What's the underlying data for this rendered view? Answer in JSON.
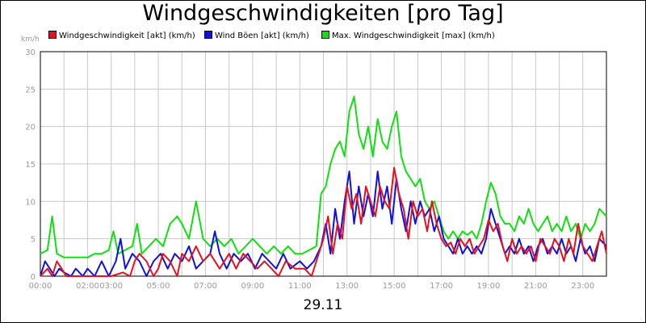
{
  "chart_data": {
    "type": "line",
    "title": "Windgeschwindigkeiten [pro Tag]",
    "date_label": "29.11",
    "unit_label": "km/h",
    "ylim": [
      0,
      30
    ],
    "yticks": [
      "0",
      "5",
      "10",
      "15",
      "20",
      "25",
      "30"
    ],
    "xlim": [
      0,
      24
    ],
    "xticks": [
      {
        "t": 0,
        "label": "00:00"
      },
      {
        "t": 2,
        "label": "02:00"
      },
      {
        "t": 3,
        "label": "03:00"
      },
      {
        "t": 5,
        "label": "05:00"
      },
      {
        "t": 7,
        "label": "07:00"
      },
      {
        "t": 9,
        "label": "09:00"
      },
      {
        "t": 11,
        "label": "11:00"
      },
      {
        "t": 13,
        "label": "13:00"
      },
      {
        "t": 15,
        "label": "15:00"
      },
      {
        "t": 17,
        "label": "17:00"
      },
      {
        "t": 19,
        "label": "19:00"
      },
      {
        "t": 21,
        "label": "21:00"
      },
      {
        "t": 23,
        "label": "23:00"
      }
    ],
    "grid": true,
    "legend_position": "top",
    "series": [
      {
        "name": "Windgeschwindigkeit [akt] (km/h)",
        "color": "#e8101e",
        "points": [
          [
            0,
            0
          ],
          [
            0.3,
            1
          ],
          [
            0.5,
            0
          ],
          [
            0.7,
            2
          ],
          [
            0.9,
            1
          ],
          [
            1.1,
            0
          ],
          [
            1.4,
            0
          ],
          [
            2,
            0
          ],
          [
            2.5,
            0
          ],
          [
            3,
            0
          ],
          [
            3.5,
            0.5
          ],
          [
            3.8,
            0
          ],
          [
            4,
            2
          ],
          [
            4.2,
            3
          ],
          [
            4.5,
            2
          ],
          [
            4.8,
            0
          ],
          [
            5,
            1
          ],
          [
            5.2,
            3
          ],
          [
            5.5,
            2
          ],
          [
            5.8,
            0
          ],
          [
            6,
            3
          ],
          [
            6.3,
            2
          ],
          [
            6.6,
            4
          ],
          [
            6.9,
            2
          ],
          [
            7.2,
            3
          ],
          [
            7.6,
            1
          ],
          [
            8,
            3
          ],
          [
            8.3,
            1
          ],
          [
            8.6,
            3
          ],
          [
            8.9,
            2
          ],
          [
            9.2,
            1
          ],
          [
            9.5,
            2
          ],
          [
            9.8,
            1
          ],
          [
            10.1,
            0
          ],
          [
            10.4,
            2
          ],
          [
            10.8,
            1
          ],
          [
            11.2,
            1
          ],
          [
            11.5,
            0
          ],
          [
            11.8,
            3
          ],
          [
            12.0,
            5
          ],
          [
            12.2,
            8
          ],
          [
            12.4,
            3
          ],
          [
            12.6,
            7
          ],
          [
            12.8,
            5
          ],
          [
            13.0,
            12
          ],
          [
            13.2,
            9
          ],
          [
            13.4,
            11
          ],
          [
            13.6,
            7
          ],
          [
            13.8,
            12
          ],
          [
            14.0,
            10
          ],
          [
            14.2,
            8
          ],
          [
            14.4,
            12
          ],
          [
            14.6,
            10
          ],
          [
            14.8,
            9
          ],
          [
            15.0,
            14.5
          ],
          [
            15.2,
            11
          ],
          [
            15.4,
            9
          ],
          [
            15.6,
            5
          ],
          [
            15.8,
            10
          ],
          [
            16.0,
            8
          ],
          [
            16.2,
            9
          ],
          [
            16.4,
            6
          ],
          [
            16.6,
            10
          ],
          [
            16.8,
            7
          ],
          [
            17.0,
            5
          ],
          [
            17.2,
            4
          ],
          [
            17.4,
            4.5
          ],
          [
            17.6,
            3
          ],
          [
            17.8,
            5
          ],
          [
            18.0,
            4
          ],
          [
            18.2,
            5
          ],
          [
            18.4,
            3
          ],
          [
            18.6,
            4
          ],
          [
            18.8,
            5
          ],
          [
            19.0,
            7.5
          ],
          [
            19.2,
            6
          ],
          [
            19.4,
            7
          ],
          [
            19.6,
            4
          ],
          [
            19.8,
            2
          ],
          [
            20.0,
            5
          ],
          [
            20.2,
            3
          ],
          [
            20.4,
            4
          ],
          [
            20.6,
            3
          ],
          [
            20.8,
            4
          ],
          [
            21.0,
            2
          ],
          [
            21.2,
            5
          ],
          [
            21.4,
            4
          ],
          [
            21.6,
            3
          ],
          [
            21.8,
            5
          ],
          [
            22.0,
            4
          ],
          [
            22.2,
            2
          ],
          [
            22.4,
            5
          ],
          [
            22.6,
            3
          ],
          [
            22.8,
            7
          ],
          [
            23.0,
            4
          ],
          [
            23.2,
            3
          ],
          [
            23.4,
            2
          ],
          [
            23.6,
            4
          ],
          [
            23.8,
            6
          ],
          [
            24,
            3
          ]
        ]
      },
      {
        "name": "Wind Böen [akt] (km/h)",
        "color": "#1010e0",
        "points": [
          [
            0,
            0
          ],
          [
            0.2,
            2
          ],
          [
            0.4,
            1
          ],
          [
            0.6,
            0
          ],
          [
            0.8,
            1
          ],
          [
            1.0,
            0.5
          ],
          [
            1.3,
            0
          ],
          [
            1.5,
            1
          ],
          [
            1.8,
            0
          ],
          [
            2,
            1
          ],
          [
            2.3,
            0
          ],
          [
            2.6,
            2
          ],
          [
            2.9,
            0
          ],
          [
            3.2,
            2
          ],
          [
            3.4,
            5
          ],
          [
            3.6,
            1
          ],
          [
            3.9,
            3
          ],
          [
            4.2,
            2
          ],
          [
            4.5,
            0
          ],
          [
            4.8,
            2
          ],
          [
            5.1,
            3
          ],
          [
            5.4,
            1
          ],
          [
            5.7,
            3
          ],
          [
            6,
            2
          ],
          [
            6.3,
            4
          ],
          [
            6.6,
            1
          ],
          [
            6.9,
            2
          ],
          [
            7.2,
            3
          ],
          [
            7.4,
            6
          ],
          [
            7.6,
            3
          ],
          [
            7.9,
            1
          ],
          [
            8.2,
            3
          ],
          [
            8.5,
            2
          ],
          [
            8.8,
            3
          ],
          [
            9.1,
            1
          ],
          [
            9.4,
            3
          ],
          [
            9.7,
            2
          ],
          [
            10.0,
            1
          ],
          [
            10.3,
            3
          ],
          [
            10.6,
            1
          ],
          [
            11.0,
            2
          ],
          [
            11.3,
            1
          ],
          [
            11.6,
            2
          ],
          [
            11.9,
            4
          ],
          [
            12.1,
            7
          ],
          [
            12.3,
            3
          ],
          [
            12.5,
            9
          ],
          [
            12.7,
            5
          ],
          [
            12.9,
            10
          ],
          [
            13.1,
            14
          ],
          [
            13.3,
            7
          ],
          [
            13.5,
            12
          ],
          [
            13.7,
            8
          ],
          [
            13.9,
            11
          ],
          [
            14.1,
            8
          ],
          [
            14.3,
            14
          ],
          [
            14.5,
            9
          ],
          [
            14.7,
            12
          ],
          [
            14.9,
            7
          ],
          [
            15.1,
            13
          ],
          [
            15.3,
            9
          ],
          [
            15.5,
            6
          ],
          [
            15.7,
            10
          ],
          [
            15.9,
            7
          ],
          [
            16.1,
            10
          ],
          [
            16.3,
            8
          ],
          [
            16.5,
            9
          ],
          [
            16.7,
            6
          ],
          [
            16.9,
            8
          ],
          [
            17.1,
            5
          ],
          [
            17.3,
            4
          ],
          [
            17.5,
            3
          ],
          [
            17.7,
            5
          ],
          [
            17.9,
            3
          ],
          [
            18.1,
            4
          ],
          [
            18.3,
            3
          ],
          [
            18.5,
            4
          ],
          [
            18.7,
            3
          ],
          [
            18.9,
            5
          ],
          [
            19.1,
            9
          ],
          [
            19.3,
            7
          ],
          [
            19.5,
            5
          ],
          [
            19.7,
            3
          ],
          [
            19.9,
            4
          ],
          [
            20.1,
            3
          ],
          [
            20.3,
            5
          ],
          [
            20.5,
            3
          ],
          [
            20.7,
            4
          ],
          [
            20.9,
            2
          ],
          [
            21.1,
            4
          ],
          [
            21.3,
            5
          ],
          [
            21.5,
            3
          ],
          [
            21.7,
            4
          ],
          [
            21.9,
            3
          ],
          [
            22.1,
            5
          ],
          [
            22.3,
            3
          ],
          [
            22.5,
            4
          ],
          [
            22.7,
            2
          ],
          [
            22.9,
            5
          ],
          [
            23.1,
            3
          ],
          [
            23.3,
            4
          ],
          [
            23.5,
            2
          ],
          [
            23.7,
            5
          ],
          [
            24,
            4
          ]
        ]
      },
      {
        "name": "Max. Windgeschwindigkeit [max] (km/h)",
        "color": "#10e010",
        "points": [
          [
            0,
            3
          ],
          [
            0.3,
            3.5
          ],
          [
            0.5,
            8
          ],
          [
            0.7,
            3
          ],
          [
            1.0,
            2.5
          ],
          [
            1.5,
            2.5
          ],
          [
            2,
            2.5
          ],
          [
            2.3,
            3
          ],
          [
            2.6,
            3
          ],
          [
            2.9,
            3.5
          ],
          [
            3.1,
            6
          ],
          [
            3.3,
            3
          ],
          [
            3.6,
            3.5
          ],
          [
            3.9,
            4
          ],
          [
            4.1,
            7
          ],
          [
            4.3,
            3
          ],
          [
            4.6,
            4
          ],
          [
            4.9,
            5
          ],
          [
            5.2,
            4
          ],
          [
            5.5,
            7
          ],
          [
            5.8,
            8
          ],
          [
            6.0,
            7
          ],
          [
            6.3,
            5
          ],
          [
            6.6,
            10
          ],
          [
            6.9,
            5
          ],
          [
            7.2,
            4
          ],
          [
            7.5,
            5
          ],
          [
            7.8,
            4
          ],
          [
            8.1,
            5
          ],
          [
            8.4,
            3
          ],
          [
            8.7,
            4
          ],
          [
            9.0,
            5
          ],
          [
            9.3,
            4
          ],
          [
            9.6,
            3
          ],
          [
            9.9,
            4
          ],
          [
            10.2,
            3
          ],
          [
            10.5,
            4
          ],
          [
            10.8,
            3
          ],
          [
            11.1,
            3
          ],
          [
            11.4,
            3.5
          ],
          [
            11.7,
            4
          ],
          [
            11.9,
            11
          ],
          [
            12.1,
            12
          ],
          [
            12.3,
            15
          ],
          [
            12.5,
            17
          ],
          [
            12.7,
            18
          ],
          [
            12.9,
            16
          ],
          [
            13.1,
            22
          ],
          [
            13.3,
            24
          ],
          [
            13.5,
            19
          ],
          [
            13.7,
            17
          ],
          [
            13.9,
            20
          ],
          [
            14.1,
            16
          ],
          [
            14.3,
            21
          ],
          [
            14.5,
            18
          ],
          [
            14.7,
            17
          ],
          [
            14.9,
            20
          ],
          [
            15.1,
            22
          ],
          [
            15.3,
            16
          ],
          [
            15.5,
            14
          ],
          [
            15.7,
            13
          ],
          [
            15.9,
            12
          ],
          [
            16.1,
            13
          ],
          [
            16.3,
            10
          ],
          [
            16.5,
            9
          ],
          [
            16.7,
            10
          ],
          [
            16.9,
            8
          ],
          [
            17.1,
            6
          ],
          [
            17.3,
            5
          ],
          [
            17.5,
            6
          ],
          [
            17.7,
            5
          ],
          [
            17.9,
            6
          ],
          [
            18.1,
            5.5
          ],
          [
            18.3,
            6
          ],
          [
            18.5,
            5
          ],
          [
            18.7,
            7
          ],
          [
            18.9,
            10
          ],
          [
            19.1,
            12.5
          ],
          [
            19.3,
            11
          ],
          [
            19.5,
            8
          ],
          [
            19.7,
            7
          ],
          [
            19.9,
            7
          ],
          [
            20.1,
            6
          ],
          [
            20.3,
            8
          ],
          [
            20.5,
            7
          ],
          [
            20.7,
            9
          ],
          [
            20.9,
            7
          ],
          [
            21.1,
            6
          ],
          [
            21.3,
            7
          ],
          [
            21.5,
            8
          ],
          [
            21.7,
            6
          ],
          [
            21.9,
            7
          ],
          [
            22.1,
            6
          ],
          [
            22.3,
            8
          ],
          [
            22.5,
            6
          ],
          [
            22.7,
            7
          ],
          [
            22.9,
            5
          ],
          [
            23.1,
            7
          ],
          [
            23.3,
            6
          ],
          [
            23.5,
            7
          ],
          [
            23.7,
            9
          ],
          [
            24,
            8
          ]
        ]
      }
    ]
  }
}
